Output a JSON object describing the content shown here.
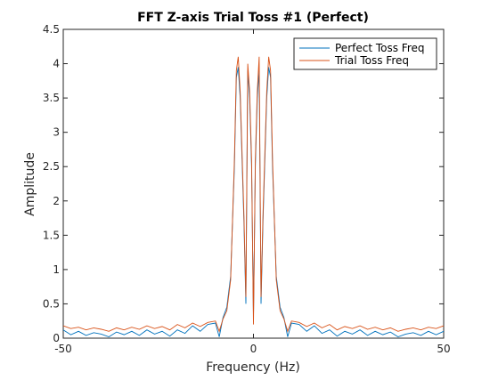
{
  "chart_data": {
    "type": "line",
    "title": "FFT Z-axis Trial Toss #1 (Perfect)",
    "xlabel": "Frequency (Hz)",
    "ylabel": "Amplitude",
    "xlim": [
      -50,
      50
    ],
    "ylim": [
      0,
      4.5
    ],
    "xticks": [
      -50,
      0,
      50
    ],
    "xtick_labels": [
      "-50",
      "0",
      "50"
    ],
    "yticks": [
      0,
      0.5,
      1,
      1.5,
      2,
      2.5,
      3,
      3.5,
      4,
      4.5
    ],
    "ytick_labels": [
      "0",
      "0.5",
      "1",
      "1.5",
      "2",
      "2.5",
      "3",
      "3.5",
      "4",
      "4.5"
    ],
    "grid": false,
    "legend_position": "top-right",
    "series": [
      {
        "name": "Perfect Toss Freq",
        "color": "#0072BD",
        "x": [
          -50,
          -48,
          -46,
          -44,
          -42,
          -40,
          -38,
          -36,
          -34,
          -32,
          -30,
          -28,
          -26,
          -24,
          -22,
          -20,
          -18,
          -16,
          -14,
          -12,
          -10,
          -9,
          -8,
          -7,
          -6,
          -5,
          -4.5,
          -4,
          -3.5,
          -3,
          -2.5,
          -2,
          -1.5,
          -1,
          -0.5,
          0,
          0.5,
          1,
          1.5,
          2,
          2.5,
          3,
          3.5,
          4,
          4.5,
          5,
          6,
          7,
          8,
          9,
          10,
          12,
          14,
          16,
          18,
          20,
          22,
          24,
          26,
          28,
          30,
          32,
          34,
          36,
          38,
          40,
          42,
          44,
          46,
          48,
          50
        ],
        "y": [
          0.12,
          0.05,
          0.1,
          0.04,
          0.08,
          0.06,
          0.02,
          0.09,
          0.05,
          0.1,
          0.04,
          0.12,
          0.06,
          0.1,
          0.03,
          0.12,
          0.07,
          0.18,
          0.1,
          0.2,
          0.22,
          0.02,
          0.3,
          0.45,
          0.9,
          2.5,
          3.8,
          3.95,
          3.5,
          2.6,
          1.7,
          0.5,
          3.9,
          3.5,
          2.5,
          0.3,
          2.5,
          3.5,
          3.9,
          0.5,
          1.7,
          2.6,
          3.5,
          3.95,
          3.8,
          2.5,
          0.9,
          0.45,
          0.3,
          0.02,
          0.22,
          0.2,
          0.1,
          0.18,
          0.07,
          0.12,
          0.03,
          0.1,
          0.06,
          0.12,
          0.04,
          0.1,
          0.05,
          0.09,
          0.02,
          0.06,
          0.08,
          0.04,
          0.1,
          0.05,
          0.1
        ]
      },
      {
        "name": "Trial Toss Freq",
        "color": "#D95319",
        "x": [
          -50,
          -48,
          -46,
          -44,
          -42,
          -40,
          -38,
          -36,
          -34,
          -32,
          -30,
          -28,
          -26,
          -24,
          -22,
          -20,
          -18,
          -16,
          -14,
          -12,
          -10,
          -9,
          -8,
          -7,
          -6,
          -5,
          -4.5,
          -4,
          -3.5,
          -3,
          -2.5,
          -2,
          -1.5,
          -1,
          -0.5,
          0,
          0.5,
          1,
          1.5,
          2,
          2.5,
          3,
          3.5,
          4,
          4.5,
          5,
          6,
          7,
          8,
          9,
          10,
          12,
          14,
          16,
          18,
          20,
          22,
          24,
          26,
          28,
          30,
          32,
          34,
          36,
          38,
          40,
          42,
          44,
          46,
          48,
          50
        ],
        "y": [
          0.18,
          0.14,
          0.16,
          0.12,
          0.15,
          0.13,
          0.1,
          0.15,
          0.12,
          0.16,
          0.13,
          0.18,
          0.14,
          0.17,
          0.12,
          0.2,
          0.15,
          0.22,
          0.17,
          0.23,
          0.25,
          0.1,
          0.28,
          0.4,
          0.85,
          2.6,
          3.9,
          4.1,
          3.6,
          2.7,
          1.8,
          0.6,
          4.0,
          3.6,
          2.6,
          0.2,
          2.6,
          3.6,
          4.1,
          0.6,
          1.8,
          2.7,
          3.6,
          4.1,
          3.9,
          2.6,
          0.85,
          0.4,
          0.28,
          0.1,
          0.25,
          0.23,
          0.17,
          0.22,
          0.15,
          0.2,
          0.12,
          0.17,
          0.14,
          0.18,
          0.13,
          0.16,
          0.12,
          0.15,
          0.1,
          0.13,
          0.15,
          0.12,
          0.16,
          0.14,
          0.18
        ]
      }
    ]
  }
}
